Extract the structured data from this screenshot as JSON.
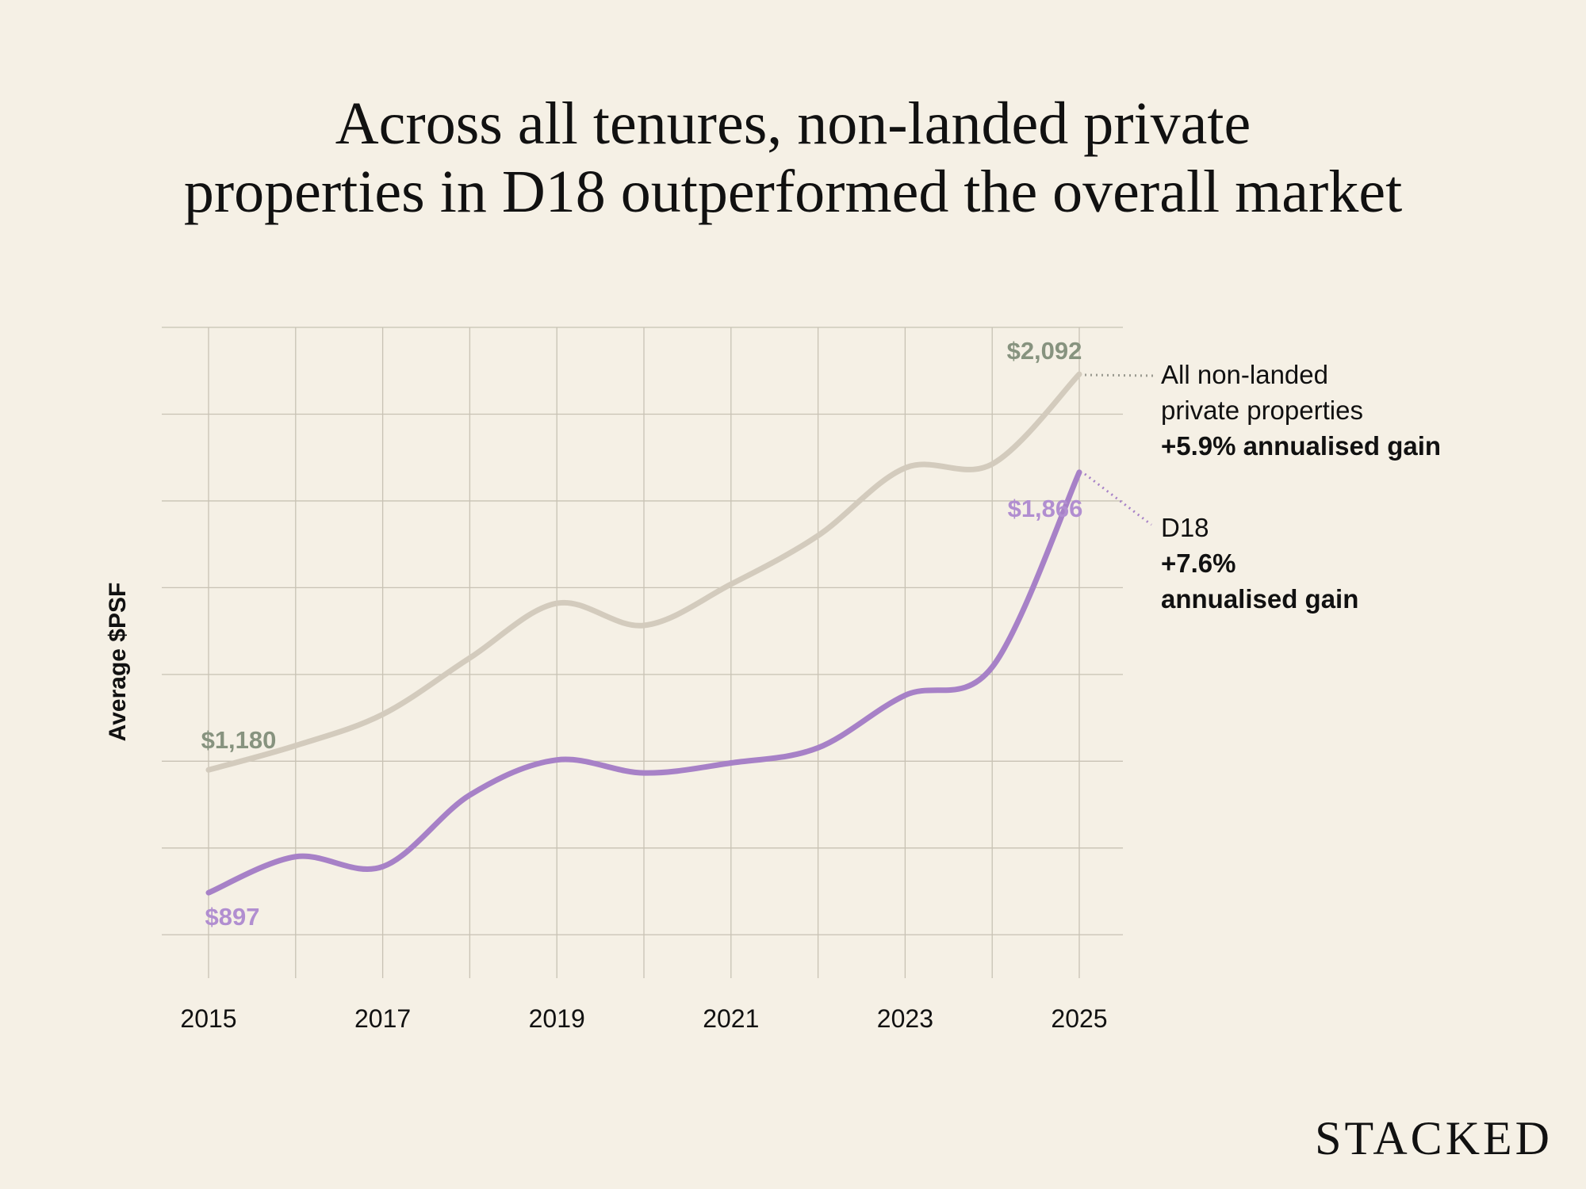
{
  "chart_data": {
    "type": "line",
    "title": "Across all tenures, non-landed private properties in D18 outperformed the overall market",
    "title_lines": [
      "Across all tenures, non-landed private",
      "properties in D18 outperformed the overall market"
    ],
    "ylabel": "Average $PSF",
    "xlabel": "",
    "x": [
      2015,
      2016,
      2017,
      2018,
      2019,
      2020,
      2021,
      2022,
      2023,
      2024,
      2025
    ],
    "x_tick_labels": [
      "2015",
      "2017",
      "2019",
      "2021",
      "2023",
      "2025"
    ],
    "ylim": [
      700,
      2200
    ],
    "y_gridlines": [
      800,
      1000,
      1200,
      1400,
      1600,
      1800,
      2000,
      2200
    ],
    "grid": true,
    "y_tick_labels_shown": false,
    "series": [
      {
        "name": "All non-landed private properties",
        "color": "#d3cbbd",
        "label_color": "#87937f",
        "values": [
          1180,
          1236,
          1308,
          1438,
          1564,
          1513,
          1608,
          1720,
          1876,
          1885,
          2092
        ],
        "start_label": "$1,180",
        "end_label": "$2,092",
        "annotation": [
          "All non-landed",
          "private properties"
        ],
        "annotation_bold": [
          "+5.9% annualised gain"
        ]
      },
      {
        "name": "D18",
        "color": "#a781c7",
        "label_color": "#b18ed0",
        "values": [
          897,
          980,
          957,
          1122,
          1203,
          1173,
          1196,
          1231,
          1352,
          1417,
          1866
        ],
        "start_label": "$897",
        "end_label": "$1,866",
        "annotation": [
          "D18"
        ],
        "annotation_bold": [
          "+7.6%",
          "annualised gain"
        ]
      }
    ]
  },
  "brand": {
    "logo": "STACKED"
  },
  "colors": {
    "background": "#f5f0e5",
    "grid": "#c8c2b4"
  }
}
